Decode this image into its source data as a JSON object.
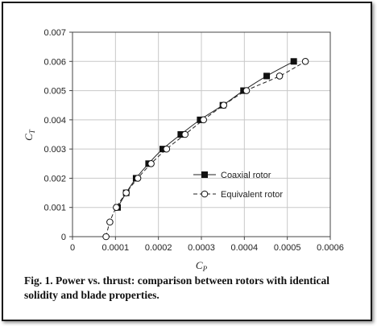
{
  "chart_data": {
    "type": "line",
    "xlabel": "C",
    "xlabel_sub": "P",
    "ylabel": "C",
    "ylabel_sub": "T",
    "xlim": [
      0,
      0.0006
    ],
    "ylim": [
      0,
      0.007
    ],
    "x_ticks": [
      "0",
      "0.0001",
      "0.0002",
      "0.0003",
      "0.0004",
      "0.0005",
      "0.0006"
    ],
    "y_ticks": [
      "0",
      "0.001",
      "0.002",
      "0.003",
      "0.004",
      "0.005",
      "0.006",
      "0.007"
    ],
    "grid": true,
    "legend_position": "center-right",
    "series": [
      {
        "name": "Coaxial rotor",
        "marker": "square-filled",
        "line": "solid",
        "points": [
          [
            0.000105,
            0.001
          ],
          [
            0.000125,
            0.0015
          ],
          [
            0.000148,
            0.002
          ],
          [
            0.000177,
            0.0025
          ],
          [
            0.00021,
            0.003
          ],
          [
            0.000252,
            0.0035
          ],
          [
            0.000297,
            0.004
          ],
          [
            0.00035,
            0.0045
          ],
          [
            0.000398,
            0.005
          ],
          [
            0.000452,
            0.0055
          ],
          [
            0.000515,
            0.006
          ]
        ]
      },
      {
        "name": "Equivalent rotor",
        "marker": "circle-open",
        "line": "dashed",
        "points": [
          [
            7.8e-05,
            0.0
          ],
          [
            8.7e-05,
            0.0005
          ],
          [
            0.000102,
            0.001
          ],
          [
            0.000125,
            0.0015
          ],
          [
            0.000152,
            0.002
          ],
          [
            0.000183,
            0.0025
          ],
          [
            0.000219,
            0.003
          ],
          [
            0.000262,
            0.0035
          ],
          [
            0.000305,
            0.004
          ],
          [
            0.000352,
            0.0045
          ],
          [
            0.000405,
            0.005
          ],
          [
            0.000482,
            0.0055
          ],
          [
            0.000542,
            0.006
          ]
        ]
      }
    ]
  },
  "caption": "Fig. 1. Power vs. thrust: comparison between rotors with identical solidity and blade properties."
}
